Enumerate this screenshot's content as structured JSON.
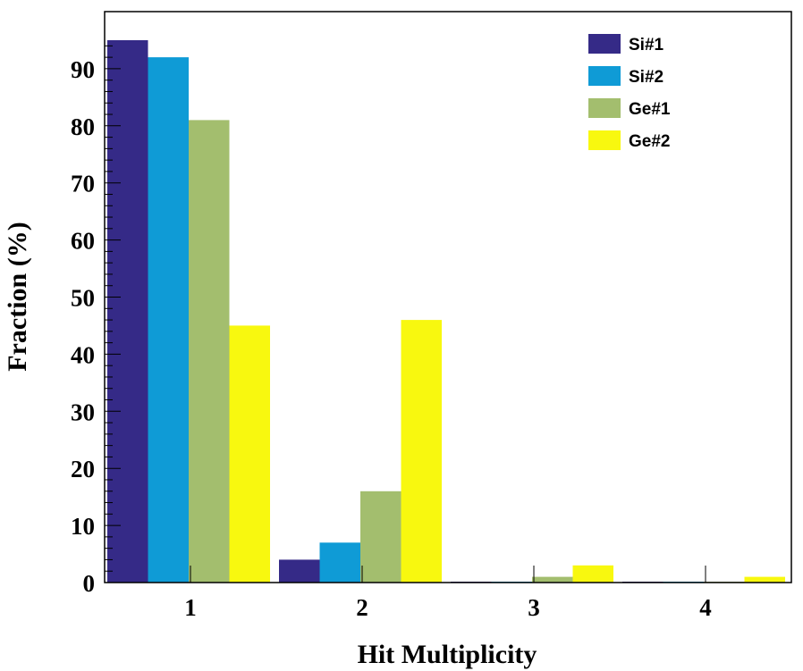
{
  "chart_data": {
    "type": "bar",
    "xlabel": "Hit Multiplicity",
    "ylabel": "Fraction (%)",
    "categories": [
      "1",
      "2",
      "3",
      "4"
    ],
    "ylim": [
      0,
      100
    ],
    "yticks": [
      "0",
      "10",
      "20",
      "30",
      "40",
      "50",
      "60",
      "70",
      "80",
      "90"
    ],
    "legend_position": "top-right",
    "grid": false,
    "series": [
      {
        "name": "Si#1",
        "color": "#352a87",
        "values": [
          95,
          4,
          0,
          0
        ]
      },
      {
        "name": "Si#2",
        "color": "#0f9bd6",
        "values": [
          92,
          7,
          0,
          0
        ]
      },
      {
        "name": "Ge#1",
        "color": "#a3be6e",
        "values": [
          81,
          16,
          1,
          0
        ]
      },
      {
        "name": "Ge#2",
        "color": "#f8f80f",
        "values": [
          45,
          46,
          3,
          1
        ]
      }
    ]
  }
}
